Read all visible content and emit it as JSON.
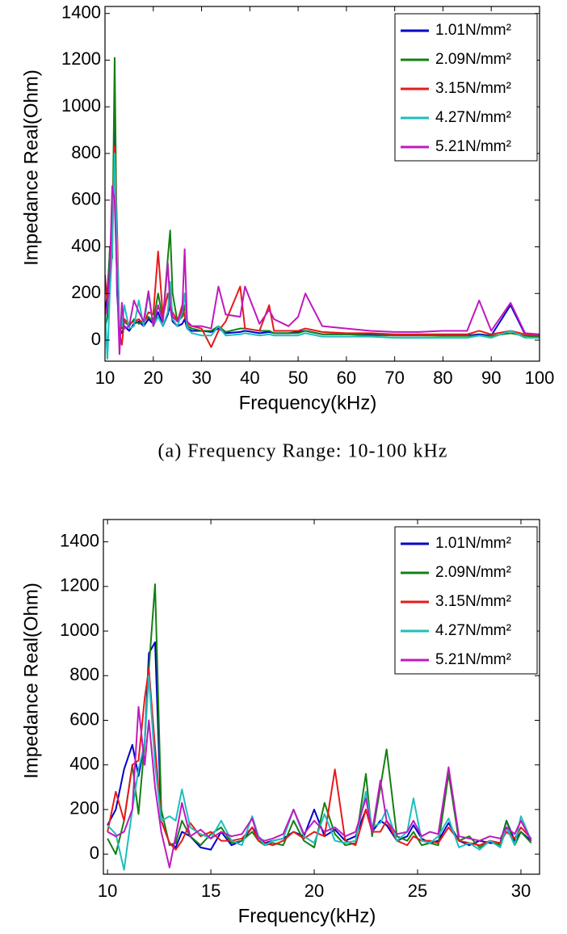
{
  "chart_data": [
    {
      "type": "line",
      "x_label": "Frequency(kHz)",
      "y_label": "Impedance Real(Ohm)",
      "caption": "(a) Frequency Range: 10-100 kHz",
      "xlim": [
        10,
        100
      ],
      "xticks": [
        10,
        20,
        30,
        40,
        50,
        60,
        70,
        80,
        90,
        100
      ],
      "ylim": [
        -90,
        1430
      ],
      "yticks": [
        0,
        200,
        400,
        600,
        800,
        1000,
        1200,
        1400
      ],
      "legend": "upper right",
      "x": [
        10,
        10.5,
        11,
        11.5,
        12,
        12.5,
        13,
        13.5,
        14,
        15,
        16,
        17,
        18,
        19,
        20,
        21,
        22,
        23,
        23.5,
        24,
        25,
        26,
        26.5,
        27,
        28,
        30,
        32,
        33.5,
        35,
        38,
        39,
        42,
        44,
        45,
        48,
        50,
        51.5,
        55,
        60,
        65,
        70,
        75,
        80,
        85,
        87.5,
        90,
        94,
        97,
        100
      ],
      "series": [
        {
          "name": "1.01N/mm²",
          "color": "#0000c8",
          "values": [
            120,
            200,
            380,
            450,
            900,
            200,
            50,
            30,
            60,
            40,
            70,
            80,
            60,
            90,
            70,
            120,
            60,
            110,
            150,
            80,
            60,
            70,
            90,
            50,
            40,
            40,
            35,
            50,
            30,
            35,
            40,
            30,
            35,
            30,
            30,
            35,
            40,
            25,
            25,
            25,
            20,
            20,
            20,
            20,
            25,
            20,
            150,
            25,
            20
          ]
        },
        {
          "name": "2.09N/mm²",
          "color": "#138013",
          "values": [
            50,
            100,
            400,
            350,
            1210,
            300,
            60,
            50,
            80,
            60,
            90,
            70,
            80,
            100,
            80,
            200,
            90,
            350,
            470,
            200,
            80,
            100,
            150,
            60,
            50,
            40,
            40,
            60,
            35,
            50,
            50,
            40,
            40,
            30,
            30,
            30,
            40,
            25,
            25,
            20,
            20,
            20,
            18,
            18,
            20,
            18,
            30,
            18,
            15
          ]
        },
        {
          "name": "3.15N/mm²",
          "color": "#e81919",
          "values": [
            280,
            150,
            300,
            450,
            830,
            480,
            30,
            -20,
            90,
            70,
            80,
            90,
            70,
            120,
            110,
            380,
            100,
            200,
            130,
            120,
            80,
            150,
            100,
            70,
            60,
            50,
            -30,
            40,
            80,
            230,
            50,
            40,
            150,
            40,
            40,
            40,
            50,
            35,
            30,
            30,
            25,
            25,
            25,
            25,
            40,
            25,
            40,
            25,
            20
          ]
        },
        {
          "name": "4.27N/mm²",
          "color": "#1ebebe",
          "values": [
            130,
            -80,
            200,
            380,
            800,
            400,
            60,
            60,
            150,
            50,
            60,
            170,
            60,
            200,
            60,
            100,
            60,
            120,
            250,
            90,
            60,
            120,
            200,
            50,
            30,
            20,
            20,
            60,
            20,
            25,
            30,
            20,
            25,
            20,
            20,
            20,
            30,
            15,
            15,
            15,
            10,
            10,
            10,
            10,
            20,
            10,
            40,
            10,
            10
          ]
        },
        {
          "name": "5.21N/mm²",
          "color": "#bf19bf",
          "values": [
            100,
            150,
            300,
            660,
            600,
            250,
            -60,
            160,
            50,
            60,
            170,
            120,
            80,
            210,
            60,
            150,
            80,
            330,
            150,
            100,
            80,
            130,
            390,
            80,
            60,
            60,
            50,
            230,
            110,
            100,
            230,
            70,
            130,
            90,
            60,
            100,
            200,
            60,
            50,
            40,
            35,
            35,
            40,
            40,
            170,
            40,
            160,
            30,
            25
          ]
        }
      ]
    },
    {
      "type": "line",
      "x_label": "Frequency(kHz)",
      "y_label": "Impedance Real(Ohm)",
      "xlim": [
        9.8,
        30.9
      ],
      "xticks": [
        10,
        15,
        20,
        25,
        30
      ],
      "ylim": [
        -90,
        1500
      ],
      "yticks": [
        0,
        200,
        400,
        600,
        800,
        1000,
        1200,
        1400
      ],
      "legend": "upper right",
      "x": [
        10,
        10.4,
        10.8,
        11.2,
        11.5,
        11.8,
        12,
        12.3,
        12.6,
        13,
        13.3,
        13.6,
        14,
        14.5,
        15,
        15.5,
        16,
        16.5,
        17,
        17.3,
        17.6,
        18,
        18.5,
        19,
        19.5,
        20,
        20.5,
        21,
        21.5,
        22,
        22.5,
        22.8,
        23.2,
        23.5,
        24,
        24.5,
        24.8,
        25.2,
        25.6,
        26,
        26.5,
        27,
        27.5,
        28,
        28.5,
        29,
        29.3,
        29.7,
        30,
        30.5
      ],
      "series": [
        {
          "name": "1.01N/mm²",
          "color": "#0000c8",
          "values": [
            130,
            200,
            380,
            490,
            350,
            500,
            900,
            950,
            150,
            50,
            30,
            100,
            80,
            30,
            20,
            100,
            40,
            60,
            120,
            80,
            50,
            60,
            70,
            100,
            80,
            200,
            80,
            110,
            60,
            80,
            200,
            100,
            150,
            130,
            60,
            80,
            130,
            70,
            50,
            60,
            140,
            60,
            40,
            60,
            50,
            50,
            150,
            60,
            100,
            60
          ]
        },
        {
          "name": "2.09N/mm²",
          "color": "#138013",
          "values": [
            70,
            0,
            150,
            400,
            180,
            500,
            830,
            1210,
            200,
            40,
            50,
            150,
            80,
            40,
            90,
            120,
            50,
            60,
            100,
            60,
            40,
            50,
            40,
            150,
            60,
            30,
            230,
            90,
            40,
            50,
            360,
            80,
            300,
            470,
            80,
            60,
            100,
            40,
            50,
            40,
            360,
            60,
            80,
            30,
            60,
            40,
            150,
            40,
            100,
            50
          ]
        },
        {
          "name": "3.15N/mm²",
          "color": "#e81919",
          "values": [
            100,
            280,
            150,
            400,
            420,
            700,
            830,
            480,
            150,
            50,
            20,
            60,
            140,
            80,
            100,
            60,
            60,
            70,
            120,
            60,
            50,
            40,
            60,
            100,
            70,
            100,
            80,
            380,
            60,
            40,
            200,
            100,
            100,
            150,
            60,
            40,
            80,
            60,
            60,
            50,
            120,
            60,
            50,
            40,
            60,
            50,
            100,
            70,
            120,
            70
          ]
        },
        {
          "name": "4.27N/mm²",
          "color": "#1ebebe",
          "values": [
            130,
            90,
            -70,
            200,
            380,
            500,
            800,
            400,
            150,
            170,
            150,
            290,
            120,
            90,
            70,
            150,
            60,
            40,
            170,
            80,
            40,
            60,
            70,
            200,
            80,
            50,
            180,
            60,
            50,
            60,
            280,
            120,
            140,
            200,
            60,
            100,
            250,
            60,
            50,
            80,
            160,
            30,
            50,
            20,
            60,
            30,
            120,
            40,
            170,
            60
          ]
        },
        {
          "name": "5.21N/mm²",
          "color": "#bf19bf",
          "values": [
            100,
            80,
            100,
            200,
            660,
            400,
            600,
            300,
            100,
            -60,
            80,
            230,
            80,
            110,
            70,
            100,
            80,
            90,
            160,
            70,
            60,
            70,
            90,
            200,
            90,
            150,
            100,
            120,
            80,
            100,
            250,
            100,
            330,
            150,
            90,
            100,
            150,
            80,
            100,
            90,
            390,
            80,
            70,
            60,
            80,
            70,
            120,
            90,
            150,
            60
          ]
        }
      ]
    }
  ]
}
